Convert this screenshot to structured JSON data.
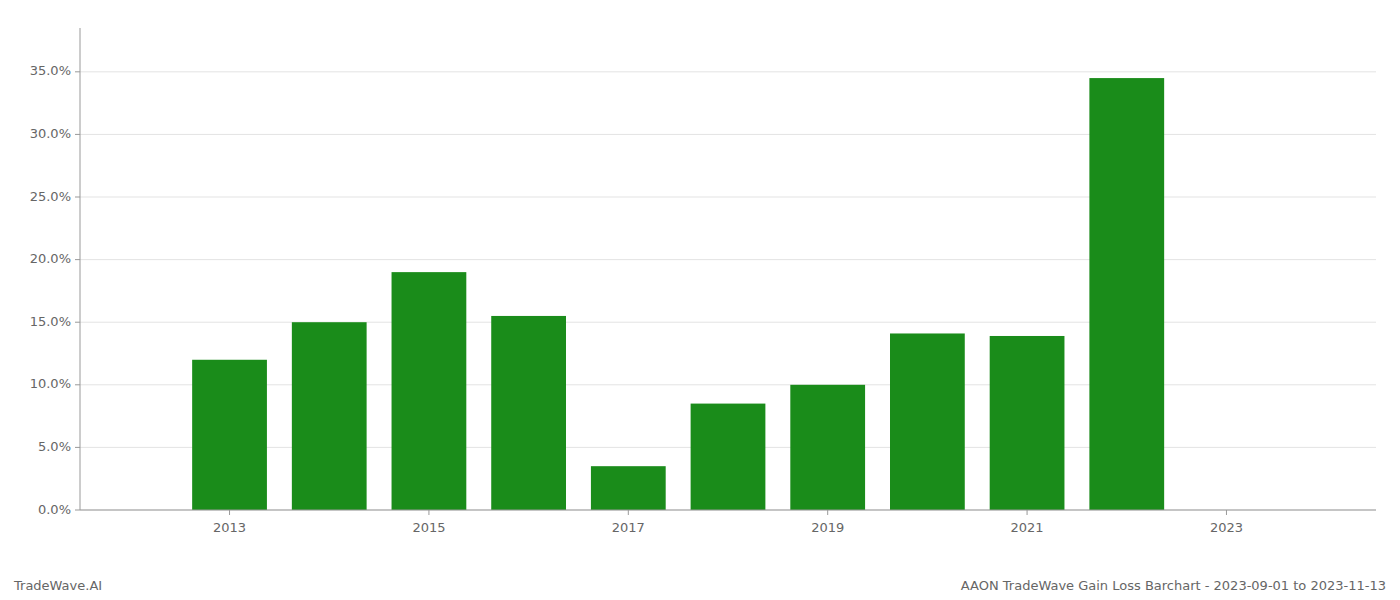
{
  "chart_data": {
    "type": "bar",
    "x": [
      2013,
      2014,
      2015,
      2016,
      2017,
      2018,
      2019,
      2020,
      2021,
      2022
    ],
    "values": [
      0.12,
      0.15,
      0.19,
      0.155,
      0.035,
      0.085,
      0.1,
      0.141,
      0.139,
      0.345
    ],
    "color": "#1a8c1a",
    "xlim": [
      2011.5,
      2024.5
    ],
    "xticks": [
      2013,
      2015,
      2017,
      2019,
      2021,
      2023
    ],
    "ylim": [
      0,
      0.385
    ],
    "yticks": [
      {
        "value": 0.0,
        "label": "0.0%"
      },
      {
        "value": 0.05,
        "label": "5.0%"
      },
      {
        "value": 0.1,
        "label": "10.0%"
      },
      {
        "value": 0.15,
        "label": "15.0%"
      },
      {
        "value": 0.2,
        "label": "20.0%"
      },
      {
        "value": 0.25,
        "label": "25.0%"
      },
      {
        "value": 0.3,
        "label": "30.0%"
      },
      {
        "value": 0.35,
        "label": "35.0%"
      }
    ],
    "grid": true,
    "annotations": [
      "TradeWave.AI",
      "AAON TradeWave Gain Loss Barchart - 2023-09-01 to 2023-11-13"
    ]
  }
}
